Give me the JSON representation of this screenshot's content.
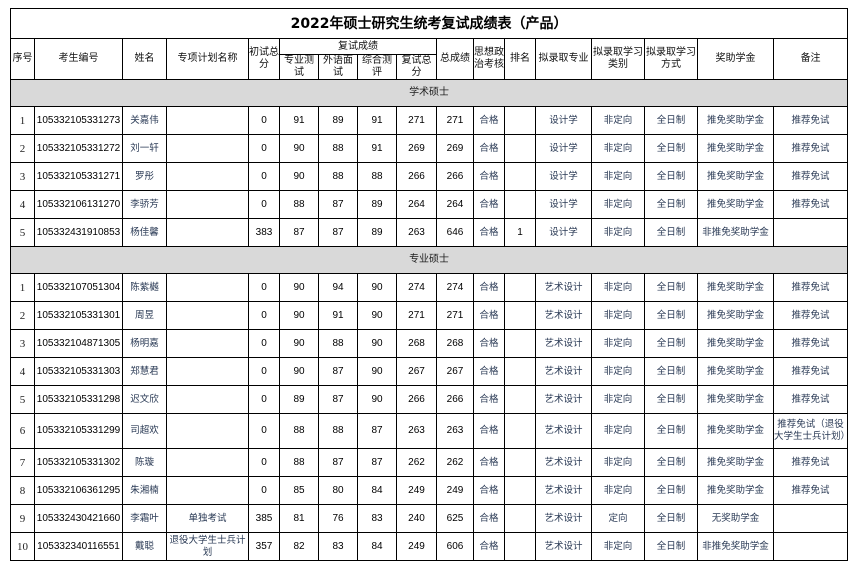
{
  "title": "2022年硕士研究生统考复试成绩表（产品）",
  "headers": {
    "seq": "序号",
    "id": "考生编号",
    "name": "姓名",
    "plan": "专项计划名称",
    "initial": "初试总分",
    "retest_group": "复试成绩",
    "major_test": "专业测试",
    "lang_test": "外语面试",
    "comp_eval": "综合测评",
    "retest_total": "复试总分",
    "total": "总成绩",
    "politics": "思想政治考核",
    "rank": "排名",
    "major": "拟录取专业",
    "category": "拟录取学习类别",
    "mode": "拟录取学习方式",
    "scholarship": "奖助学金",
    "remark": "备注"
  },
  "sections": [
    {
      "label": "学术硕士",
      "rows": [
        {
          "seq": "1",
          "id": "105332105331273",
          "name": "关嘉伟",
          "plan": "",
          "initial": "0",
          "major_test": "91",
          "lang_test": "89",
          "comp_eval": "91",
          "retest_total": "271",
          "total": "271",
          "politics": "合格",
          "rank": "",
          "major": "设计学",
          "category": "非定向",
          "mode": "全日制",
          "scholarship": "推免奖助学金",
          "remark": "推荐免试"
        },
        {
          "seq": "2",
          "id": "105332105331272",
          "name": "刘一轩",
          "plan": "",
          "initial": "0",
          "major_test": "90",
          "lang_test": "88",
          "comp_eval": "91",
          "retest_total": "269",
          "total": "269",
          "politics": "合格",
          "rank": "",
          "major": "设计学",
          "category": "非定向",
          "mode": "全日制",
          "scholarship": "推免奖助学金",
          "remark": "推荐免试"
        },
        {
          "seq": "3",
          "id": "105332105331271",
          "name": "罗彤",
          "plan": "",
          "initial": "0",
          "major_test": "90",
          "lang_test": "88",
          "comp_eval": "88",
          "retest_total": "266",
          "total": "266",
          "politics": "合格",
          "rank": "",
          "major": "设计学",
          "category": "非定向",
          "mode": "全日制",
          "scholarship": "推免奖助学金",
          "remark": "推荐免试"
        },
        {
          "seq": "4",
          "id": "105332106131270",
          "name": "李骄芳",
          "plan": "",
          "initial": "0",
          "major_test": "88",
          "lang_test": "87",
          "comp_eval": "89",
          "retest_total": "264",
          "total": "264",
          "politics": "合格",
          "rank": "",
          "major": "设计学",
          "category": "非定向",
          "mode": "全日制",
          "scholarship": "推免奖助学金",
          "remark": "推荐免试"
        },
        {
          "seq": "5",
          "id": "105332431910853",
          "name": "杨佳馨",
          "plan": "",
          "initial": "383",
          "major_test": "87",
          "lang_test": "87",
          "comp_eval": "89",
          "retest_total": "263",
          "total": "646",
          "politics": "合格",
          "rank": "1",
          "major": "设计学",
          "category": "非定向",
          "mode": "全日制",
          "scholarship": "非推免奖助学金",
          "remark": ""
        }
      ]
    },
    {
      "label": "专业硕士",
      "rows": [
        {
          "seq": "1",
          "id": "105332107051304",
          "name": "陈紫樾",
          "plan": "",
          "initial": "0",
          "major_test": "90",
          "lang_test": "94",
          "comp_eval": "90",
          "retest_total": "274",
          "total": "274",
          "politics": "合格",
          "rank": "",
          "major": "艺术设计",
          "category": "非定向",
          "mode": "全日制",
          "scholarship": "推免奖助学金",
          "remark": "推荐免试"
        },
        {
          "seq": "2",
          "id": "105332105331301",
          "name": "周昱",
          "plan": "",
          "initial": "0",
          "major_test": "90",
          "lang_test": "91",
          "comp_eval": "90",
          "retest_total": "271",
          "total": "271",
          "politics": "合格",
          "rank": "",
          "major": "艺术设计",
          "category": "非定向",
          "mode": "全日制",
          "scholarship": "推免奖助学金",
          "remark": "推荐免试"
        },
        {
          "seq": "3",
          "id": "105332104871305",
          "name": "杨明嘉",
          "plan": "",
          "initial": "0",
          "major_test": "90",
          "lang_test": "88",
          "comp_eval": "90",
          "retest_total": "268",
          "total": "268",
          "politics": "合格",
          "rank": "",
          "major": "艺术设计",
          "category": "非定向",
          "mode": "全日制",
          "scholarship": "推免奖助学金",
          "remark": "推荐免试"
        },
        {
          "seq": "4",
          "id": "105332105331303",
          "name": "郑慧君",
          "plan": "",
          "initial": "0",
          "major_test": "90",
          "lang_test": "87",
          "comp_eval": "90",
          "retest_total": "267",
          "total": "267",
          "politics": "合格",
          "rank": "",
          "major": "艺术设计",
          "category": "非定向",
          "mode": "全日制",
          "scholarship": "推免奖助学金",
          "remark": "推荐免试"
        },
        {
          "seq": "5",
          "id": "105332105331298",
          "name": "迟文欣",
          "plan": "",
          "initial": "0",
          "major_test": "89",
          "lang_test": "87",
          "comp_eval": "90",
          "retest_total": "266",
          "total": "266",
          "politics": "合格",
          "rank": "",
          "major": "艺术设计",
          "category": "非定向",
          "mode": "全日制",
          "scholarship": "推免奖助学金",
          "remark": "推荐免试"
        },
        {
          "seq": "6",
          "id": "105332105331299",
          "name": "司超欢",
          "plan": "",
          "initial": "0",
          "major_test": "88",
          "lang_test": "88",
          "comp_eval": "87",
          "retest_total": "263",
          "total": "263",
          "politics": "合格",
          "rank": "",
          "major": "艺术设计",
          "category": "非定向",
          "mode": "全日制",
          "scholarship": "推免奖助学金",
          "remark": "推荐免试（退役大学生士兵计划）"
        },
        {
          "seq": "7",
          "id": "105332105331302",
          "name": "陈璇",
          "plan": "",
          "initial": "0",
          "major_test": "88",
          "lang_test": "87",
          "comp_eval": "87",
          "retest_total": "262",
          "total": "262",
          "politics": "合格",
          "rank": "",
          "major": "艺术设计",
          "category": "非定向",
          "mode": "全日制",
          "scholarship": "推免奖助学金",
          "remark": "推荐免试"
        },
        {
          "seq": "8",
          "id": "105332106361295",
          "name": "朱湘楠",
          "plan": "",
          "initial": "0",
          "major_test": "85",
          "lang_test": "80",
          "comp_eval": "84",
          "retest_total": "249",
          "total": "249",
          "politics": "合格",
          "rank": "",
          "major": "艺术设计",
          "category": "非定向",
          "mode": "全日制",
          "scholarship": "推免奖助学金",
          "remark": "推荐免试"
        },
        {
          "seq": "9",
          "id": "105332430421660",
          "name": "李霜叶",
          "plan": "单独考试",
          "initial": "385",
          "major_test": "81",
          "lang_test": "76",
          "comp_eval": "83",
          "retest_total": "240",
          "total": "625",
          "politics": "合格",
          "rank": "",
          "major": "艺术设计",
          "category": "定向",
          "mode": "全日制",
          "scholarship": "无奖助学金",
          "remark": ""
        },
        {
          "seq": "10",
          "id": "105332340116551",
          "name": "戴聪",
          "plan": "退役大学生士兵计划",
          "initial": "357",
          "major_test": "82",
          "lang_test": "83",
          "comp_eval": "84",
          "retest_total": "249",
          "total": "606",
          "politics": "合格",
          "rank": "",
          "major": "艺术设计",
          "category": "非定向",
          "mode": "全日制",
          "scholarship": "非推免奖助学金",
          "remark": ""
        }
      ]
    }
  ]
}
